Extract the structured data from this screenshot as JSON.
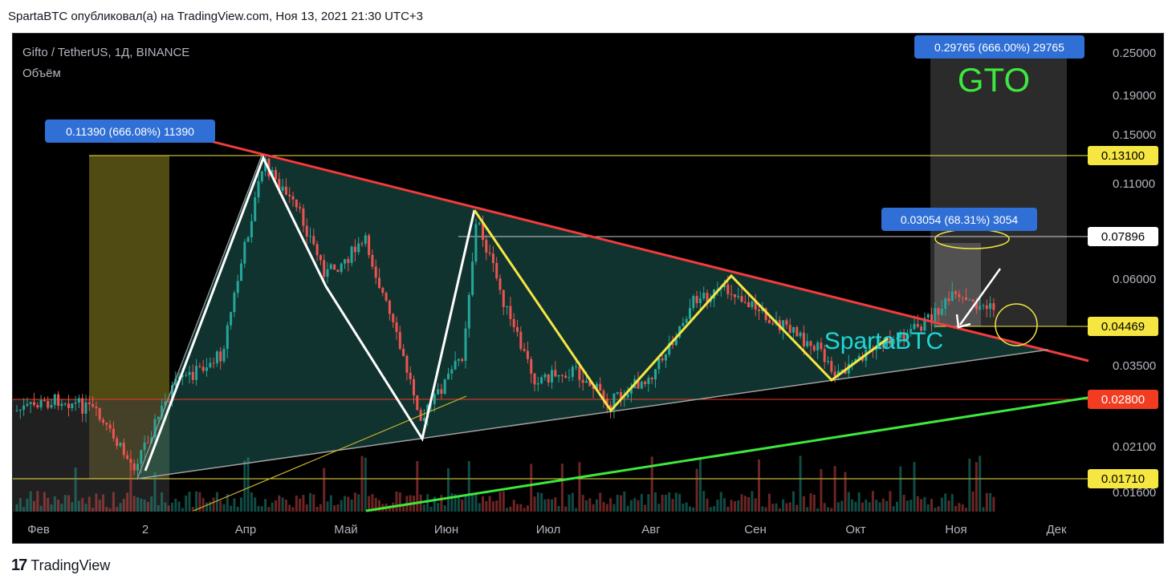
{
  "header": {
    "caption": "SpartaBTC опубликовал(а) на TradingView.com, Ноя 13, 2021 21:30 UTC+3"
  },
  "legend": {
    "symbol": "Gifto / TetherUS, 1Д, BINANCE",
    "volume": "Объём"
  },
  "footer": {
    "logo_text": "TradingView",
    "logo_mark": "17"
  },
  "chart_data": {
    "type": "candlestick",
    "scale": "log",
    "x_ticks": [
      "Фев",
      "2",
      "Апр",
      "Май",
      "Июн",
      "Июл",
      "Авг",
      "Сен",
      "Окт",
      "Ноя",
      "Дек"
    ],
    "y_ticks": [
      "0.25000",
      "0.19000",
      "0.15000",
      "0.11000",
      "0.06000",
      "0.03500",
      "0.02100",
      "0.01600"
    ],
    "level_labels": [
      {
        "value": "0.13100",
        "color": "#f5e642"
      },
      {
        "value": "0.07896",
        "color": "#ffffff"
      },
      {
        "value": "0.04469",
        "color": "#f5e642"
      },
      {
        "value": "0.02800",
        "color": "#f23c22"
      },
      {
        "value": "0.01710",
        "color": "#f5e642"
      }
    ],
    "measure_labels": [
      "0.29765 (666.00%) 29765",
      "0.11390 (666.08%) 11390",
      "0.03054 (68.31%) 3054"
    ],
    "annotations": {
      "target": "GTO",
      "watermark": "SpartaBTC"
    },
    "colors": {
      "up": "#26a69a",
      "down": "#ef5350",
      "resistance": "#f23c3c",
      "support": "#3ee83e"
    }
  }
}
